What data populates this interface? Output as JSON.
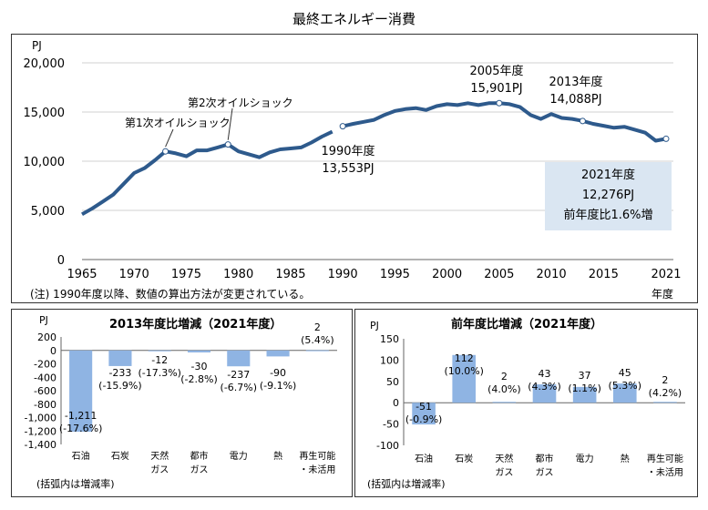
{
  "title": "最終エネルギー消費",
  "note": "(注) 1990年度以降、数値の算出方法が変更されている。",
  "main_chart": {
    "unit": "PJ",
    "y_ticks": [
      "20,000",
      "15,000",
      "10,000",
      "5,000",
      "0"
    ],
    "x_ticks": [
      "1965",
      "1970",
      "1975",
      "1980",
      "1985",
      "1990",
      "1995",
      "2000",
      "2005",
      "2010",
      "2015",
      "2021"
    ],
    "x_unit": "年度",
    "oil_shock_1": "第1次オイルショック",
    "oil_shock_2": "第2次オイルショック",
    "label_1990_year": "1990年度",
    "label_1990_value": "13,553PJ",
    "label_2005_year": "2005年度",
    "label_2005_value": "15,901PJ",
    "label_2013_year": "2013年度",
    "label_2013_value": "14,088PJ",
    "box_2021_year": "2021年度",
    "box_2021_value": "12,276PJ",
    "box_2021_change": "前年度比1.6%増"
  },
  "left_panel": {
    "title": "2013年度比増減（2021年度）",
    "unit": "PJ",
    "y_ticks": [
      "200",
      "0",
      "-200",
      "-400",
      "-600",
      "-800",
      "-1,000",
      "-1,200",
      "-1,400"
    ],
    "note": "(括弧内は増減率)",
    "value_labels": [
      "-1,211",
      "-233",
      "-12",
      "-30",
      "-237",
      "-90",
      "2"
    ],
    "pct_labels": [
      "(-17.6%)",
      "(-15.9%)",
      "(-17.3%)",
      "(-2.8%)",
      "(-6.7%)",
      "(-9.1%)",
      "(5.4%)"
    ]
  },
  "right_panel": {
    "title": "前年度比増減（2021年度）",
    "unit": "PJ",
    "y_ticks": [
      "150",
      "100",
      "50",
      "0",
      "-50",
      "-100"
    ],
    "note": "(括弧内は増減率)",
    "value_labels": [
      "-51",
      "112",
      "2",
      "43",
      "37",
      "45",
      "2"
    ],
    "pct_labels": [
      "(-0.9%)",
      "(10.0%)",
      "(4.0%)",
      "(4.3%)",
      "(1.1%)",
      "(5.3%)",
      "(4.2%)"
    ]
  },
  "categories_line1": [
    "石油",
    "石炭",
    "天然",
    "都市",
    "電力",
    "熱",
    "再生可能"
  ],
  "categories_line2": [
    "",
    "",
    "ガス",
    "ガス",
    "",
    "",
    "・未活用"
  ],
  "colors": {
    "line": "#2e5a8c",
    "bar": "#8fb4e3",
    "box": "#dae6f2"
  },
  "chart_data": [
    {
      "type": "line",
      "title": "最終エネルギー消費",
      "ylabel": "PJ",
      "xlabel": "年度",
      "ylim": [
        0,
        20000
      ],
      "xlim": [
        1965,
        2021
      ],
      "grid": true,
      "series": [
        {
          "x": [
            1965,
            1966,
            1967,
            1968,
            1969,
            1970,
            1971,
            1972,
            1973,
            1974,
            1975,
            1976,
            1977,
            1978,
            1979,
            1980,
            1981,
            1982,
            1983,
            1984,
            1985,
            1986,
            1987,
            1988,
            1989
          ],
          "values": [
            4600,
            5200,
            5900,
            6600,
            7700,
            8800,
            9300,
            10100,
            11000,
            10800,
            10500,
            11100,
            11100,
            11400,
            11700,
            11000,
            10700,
            10400,
            10900,
            11200,
            11300,
            11400,
            11900,
            12500,
            13000
          ]
        },
        {
          "x": [
            1990,
            1991,
            1992,
            1993,
            1994,
            1995,
            1996,
            1997,
            1998,
            1999,
            2000,
            2001,
            2002,
            2003,
            2004,
            2005,
            2006,
            2007,
            2008,
            2009,
            2010,
            2011,
            2012,
            2013,
            2014,
            2015,
            2016,
            2017,
            2018,
            2019,
            2020,
            2021
          ],
          "values": [
            13553,
            13800,
            14000,
            14200,
            14700,
            15100,
            15300,
            15400,
            15200,
            15600,
            15800,
            15700,
            15900,
            15700,
            15900,
            15901,
            15800,
            15500,
            14700,
            14300,
            14800,
            14400,
            14300,
            14088,
            13800,
            13600,
            13400,
            13500,
            13200,
            12900,
            12080,
            12276
          ]
        }
      ],
      "annotations": [
        "第1次オイルショック",
        "第2次オイルショック",
        "1990年度 13,553PJ",
        "2005年度 15,901PJ",
        "2013年度 14,088PJ",
        "2021年度 12,276PJ 前年度比1.6%増"
      ]
    },
    {
      "type": "bar",
      "title": "2013年度比増減（2021年度）",
      "ylabel": "PJ",
      "ylim": [
        -1400,
        200
      ],
      "categories": [
        "石油",
        "石炭",
        "天然ガス",
        "都市ガス",
        "電力",
        "熱",
        "再生可能・未活用"
      ],
      "values": [
        -1211,
        -233,
        -12,
        -30,
        -237,
        -90,
        2
      ]
    },
    {
      "type": "bar",
      "title": "前年度比増減（2021年度）",
      "ylabel": "PJ",
      "ylim": [
        -100,
        150
      ],
      "categories": [
        "石油",
        "石炭",
        "天然ガス",
        "都市ガス",
        "電力",
        "熱",
        "再生可能・未活用"
      ],
      "values": [
        -51,
        112,
        2,
        43,
        37,
        45,
        2
      ]
    }
  ]
}
